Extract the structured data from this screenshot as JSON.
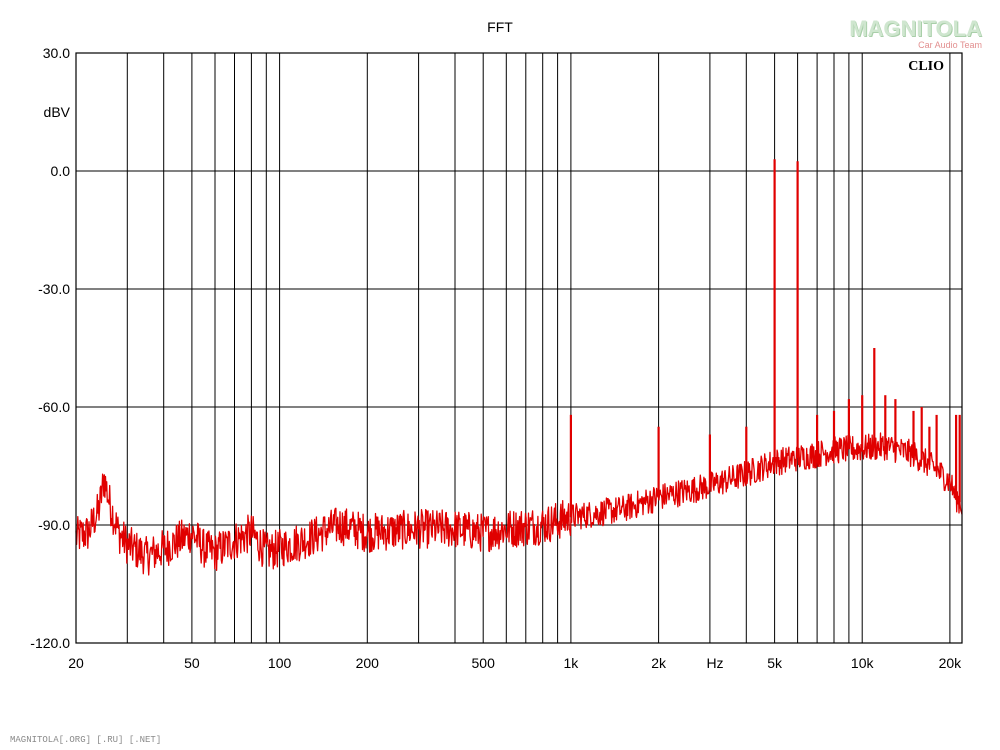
{
  "chart_data": {
    "type": "line",
    "title": "FFT",
    "xlabel": "Hz",
    "ylabel": "dBV",
    "x_scale": "log",
    "xlim": [
      20,
      22000
    ],
    "ylim": [
      -120,
      30
    ],
    "y_ticks": [
      30,
      0,
      -30,
      -60,
      -90,
      -120
    ],
    "y_tick_labels": [
      "30.0",
      "0.0",
      "-30.0",
      "-60.0",
      "-90.0",
      "-120.0"
    ],
    "x_tick_labels": [
      {
        "value": 20,
        "label": "20"
      },
      {
        "value": 50,
        "label": "50"
      },
      {
        "value": 100,
        "label": "100"
      },
      {
        "value": 200,
        "label": "200"
      },
      {
        "value": 500,
        "label": "500"
      },
      {
        "value": 1000,
        "label": "1k"
      },
      {
        "value": 2000,
        "label": "2k"
      },
      {
        "value": 5000,
        "label": "5k"
      },
      {
        "value": 10000,
        "label": "10k"
      },
      {
        "value": 20000,
        "label": "20k"
      }
    ],
    "grid": true,
    "badge": "CLIO",
    "series": [
      {
        "color": "#e00000",
        "noise_floor": [
          [
            20,
            -93
          ],
          [
            22,
            -92
          ],
          [
            24,
            -86
          ],
          [
            25,
            -78
          ],
          [
            26,
            -84
          ],
          [
            28,
            -92
          ],
          [
            30,
            -95
          ],
          [
            35,
            -98
          ],
          [
            40,
            -96
          ],
          [
            45,
            -94
          ],
          [
            50,
            -92
          ],
          [
            55,
            -96
          ],
          [
            60,
            -97
          ],
          [
            70,
            -94
          ],
          [
            80,
            -92
          ],
          [
            90,
            -97
          ],
          [
            100,
            -96
          ],
          [
            130,
            -93
          ],
          [
            160,
            -90
          ],
          [
            200,
            -92
          ],
          [
            300,
            -91
          ],
          [
            400,
            -91
          ],
          [
            500,
            -92
          ],
          [
            600,
            -91
          ],
          [
            800,
            -90
          ],
          [
            1000,
            -88
          ],
          [
            1500,
            -86
          ],
          [
            2000,
            -83
          ],
          [
            3000,
            -80
          ],
          [
            4000,
            -77
          ],
          [
            5000,
            -74
          ],
          [
            7000,
            -72
          ],
          [
            8000,
            -71
          ],
          [
            10000,
            -70.5
          ],
          [
            12000,
            -70
          ],
          [
            15000,
            -72
          ],
          [
            18000,
            -76
          ],
          [
            20000,
            -79
          ],
          [
            21000,
            -83
          ],
          [
            22000,
            -85
          ]
        ],
        "peaks": [
          {
            "x": 1000,
            "y": -62
          },
          {
            "x": 2000,
            "y": -65
          },
          {
            "x": 3000,
            "y": -67
          },
          {
            "x": 4000,
            "y": -65
          },
          {
            "x": 5000,
            "y": 3
          },
          {
            "x": 6000,
            "y": 2.5
          },
          {
            "x": 7000,
            "y": -62
          },
          {
            "x": 8000,
            "y": -61
          },
          {
            "x": 9000,
            "y": -58
          },
          {
            "x": 10000,
            "y": -57
          },
          {
            "x": 11000,
            "y": -45
          },
          {
            "x": 12000,
            "y": -57
          },
          {
            "x": 13000,
            "y": -58
          },
          {
            "x": 15000,
            "y": -61
          },
          {
            "x": 16000,
            "y": -60
          },
          {
            "x": 17000,
            "y": -65
          },
          {
            "x": 18000,
            "y": -62
          },
          {
            "x": 21000,
            "y": -62
          },
          {
            "x": 21600,
            "y": -62
          }
        ]
      }
    ]
  },
  "watermark": {
    "brand": "MAGNITOLA",
    "sub": "Car Audio Team"
  },
  "footer": "MAGNITOLA[.ORG] [.RU] [.NET]"
}
